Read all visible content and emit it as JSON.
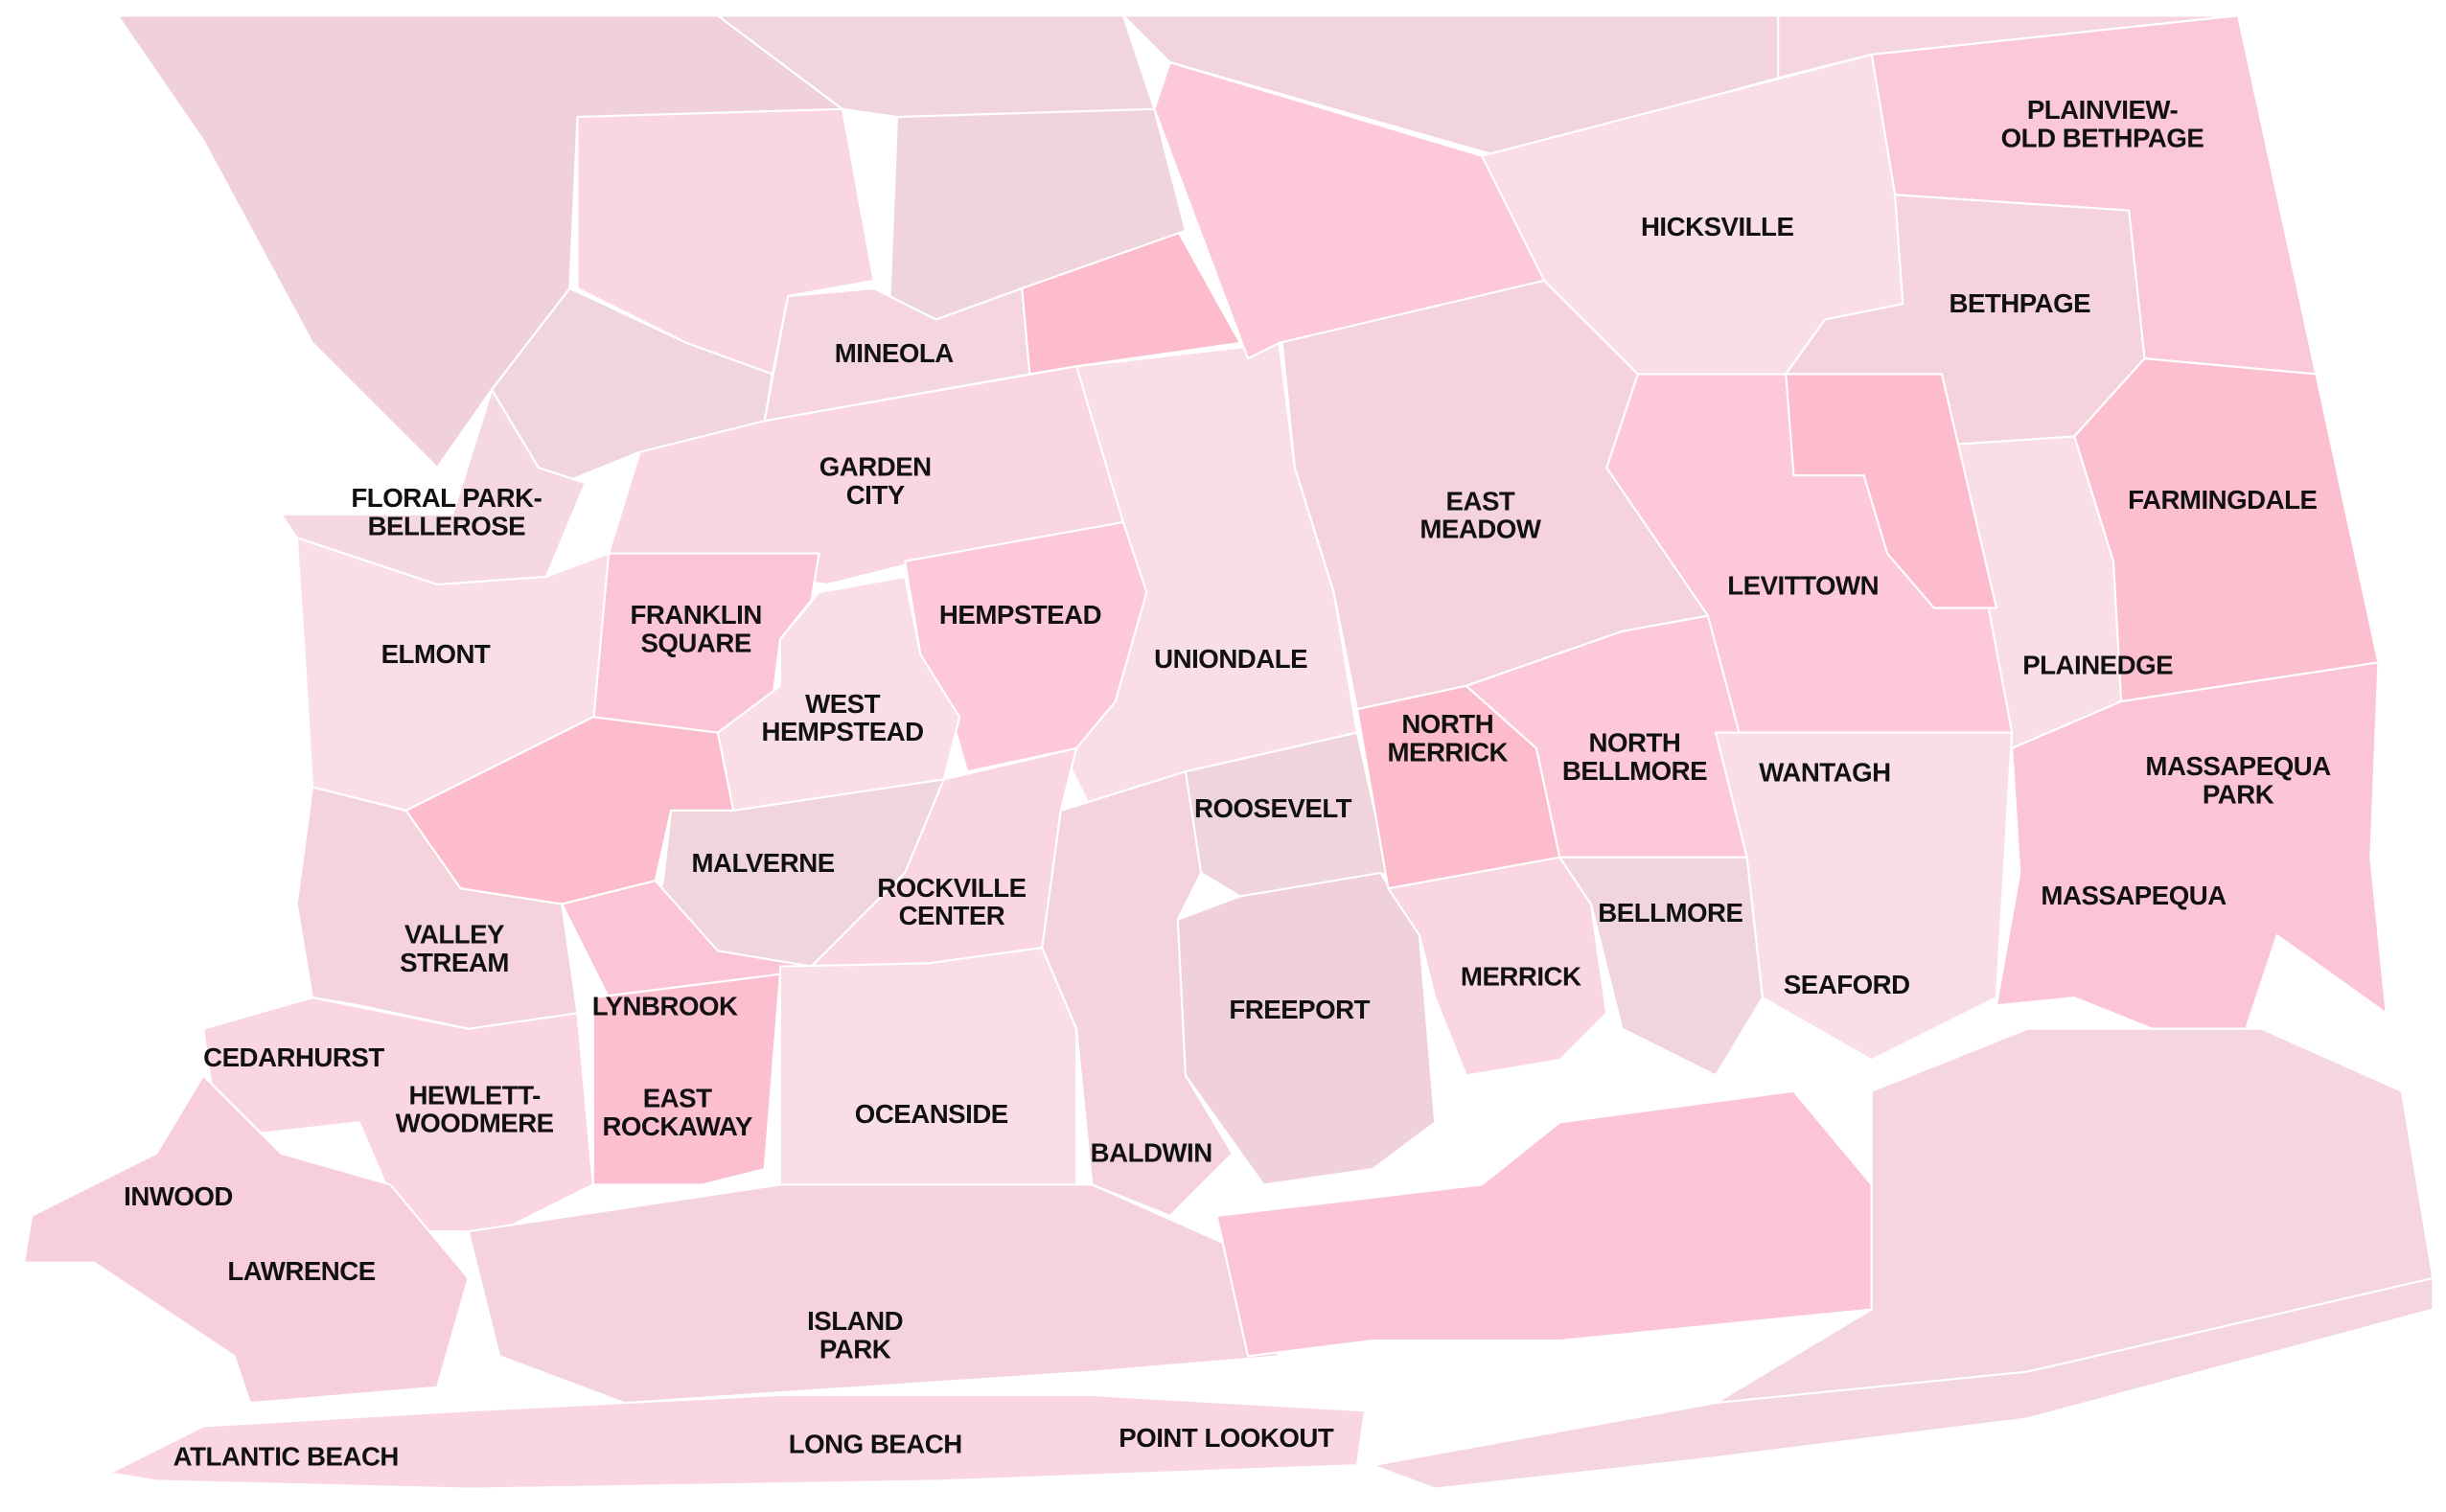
{
  "map": {
    "labels": [
      {
        "lines": [
          "PLAINVIEW-",
          "OLD BETHPAGE"
        ]
      },
      {
        "lines": [
          "HICKSVILLE"
        ]
      },
      {
        "lines": [
          "BETHPAGE"
        ]
      },
      {
        "lines": [
          "MINEOLA"
        ]
      },
      {
        "lines": [
          "FLORAL PARK-",
          "BELLEROSE"
        ]
      },
      {
        "lines": [
          "GARDEN",
          "CITY"
        ]
      },
      {
        "lines": [
          "EAST",
          "MEADOW"
        ]
      },
      {
        "lines": [
          "FARMINGDALE"
        ]
      },
      {
        "lines": [
          "LEVITTOWN"
        ]
      },
      {
        "lines": [
          "FRANKLIN",
          "SQUARE"
        ]
      },
      {
        "lines": [
          "HEMPSTEAD"
        ]
      },
      {
        "lines": [
          "ELMONT"
        ]
      },
      {
        "lines": [
          "UNIONDALE"
        ]
      },
      {
        "lines": [
          "PLAINEDGE"
        ]
      },
      {
        "lines": [
          "WEST",
          "HEMPSTEAD"
        ]
      },
      {
        "lines": [
          "NORTH",
          "MERRICK"
        ]
      },
      {
        "lines": [
          "NORTH",
          "BELLMORE"
        ]
      },
      {
        "lines": [
          "MASSAPEQUA",
          "PARK"
        ]
      },
      {
        "lines": [
          "WANTAGH"
        ]
      },
      {
        "lines": [
          "ROOSEVELT"
        ]
      },
      {
        "lines": [
          "MALVERNE"
        ]
      },
      {
        "lines": [
          "ROCKVILLE",
          "CENTER"
        ]
      },
      {
        "lines": [
          "MASSAPEQUA"
        ]
      },
      {
        "lines": [
          "BELLMORE"
        ]
      },
      {
        "lines": [
          "VALLEY",
          "STREAM"
        ]
      },
      {
        "lines": [
          "MERRICK"
        ]
      },
      {
        "lines": [
          "SEAFORD"
        ]
      },
      {
        "lines": [
          "LYNBROOK"
        ]
      },
      {
        "lines": [
          "FREEPORT"
        ]
      },
      {
        "lines": [
          "CEDARHURST"
        ]
      },
      {
        "lines": [
          "HEWLETT-",
          "WOODMERE"
        ]
      },
      {
        "lines": [
          "EAST",
          "ROCKAWAY"
        ]
      },
      {
        "lines": [
          "OCEANSIDE"
        ]
      },
      {
        "lines": [
          "BALDWIN"
        ]
      },
      {
        "lines": [
          "INWOOD"
        ]
      },
      {
        "lines": [
          "LAWRENCE"
        ]
      },
      {
        "lines": [
          "ISLAND",
          "PARK"
        ]
      },
      {
        "lines": [
          "LONG BEACH"
        ]
      },
      {
        "lines": [
          "POINT LOOKOUT"
        ]
      },
      {
        "lines": [
          "ATLANTIC BEACH"
        ]
      }
    ]
  }
}
